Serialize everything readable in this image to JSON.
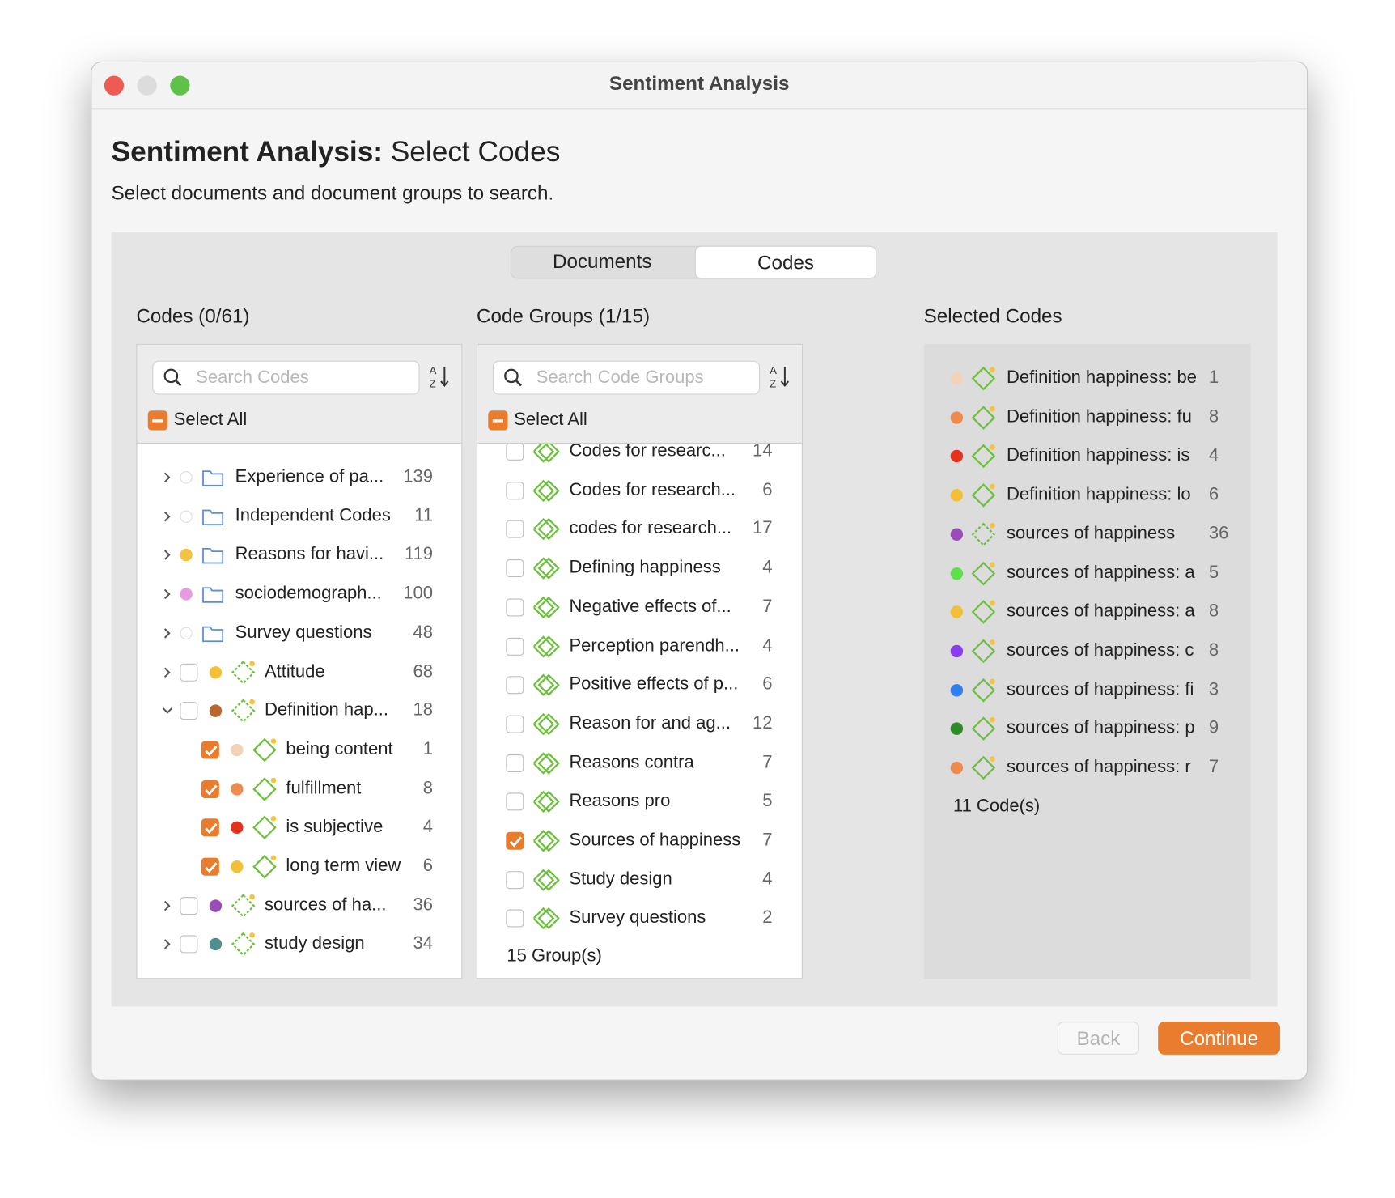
{
  "window": {
    "title": "Sentiment Analysis"
  },
  "header": {
    "title_bold": "Sentiment Analysis:",
    "title_rest": "Select Codes",
    "subtitle": "Select documents and document groups to search."
  },
  "tabs": {
    "items": [
      "Documents",
      "Codes"
    ],
    "active": 1
  },
  "codes": {
    "title": "Codes (0/61)",
    "search_placeholder": "Search Codes",
    "select_all": "Select All",
    "items": [
      {
        "label": "Experience of pa...",
        "count": 139,
        "kind": "folder",
        "color": null,
        "level": 0
      },
      {
        "label": "Independent Codes",
        "count": 11,
        "kind": "folder",
        "color": null,
        "level": 0
      },
      {
        "label": "Reasons for havi...",
        "count": 119,
        "kind": "folder",
        "color": "#f5c242",
        "level": 0
      },
      {
        "label": "sociodemograph...",
        "count": 100,
        "kind": "folder",
        "color": "#e79ae2",
        "level": 0
      },
      {
        "label": "Survey questions",
        "count": 48,
        "kind": "folder",
        "color": null,
        "level": 0
      },
      {
        "label": "Attitude",
        "count": 68,
        "kind": "group-code",
        "color": "#f2c037",
        "level": 0,
        "checked": false
      },
      {
        "label": "Definition hap...",
        "count": 18,
        "kind": "group-code",
        "color": "#b8682d",
        "level": 0,
        "checked": false,
        "expanded": true
      },
      {
        "label": "being content",
        "count": 1,
        "kind": "code",
        "color": "#f3d3b8",
        "level": 1,
        "checked": true
      },
      {
        "label": "fulfillment",
        "count": 8,
        "kind": "code",
        "color": "#ef8a4e",
        "level": 1,
        "checked": true
      },
      {
        "label": "is subjective",
        "count": 4,
        "kind": "code",
        "color": "#e5321d",
        "level": 1,
        "checked": true
      },
      {
        "label": "long term view",
        "count": 6,
        "kind": "code",
        "color": "#f2c037",
        "level": 1,
        "checked": true
      },
      {
        "label": "sources of ha...",
        "count": 36,
        "kind": "group-code",
        "color": "#9a4cb9",
        "level": 0,
        "checked": false
      },
      {
        "label": "study design",
        "count": 34,
        "kind": "group-code",
        "color": "#4f8f8c",
        "level": 0,
        "checked": false
      }
    ]
  },
  "code_groups": {
    "title": "Code Groups (1/15)",
    "search_placeholder": "Search Code Groups",
    "select_all": "Select All",
    "footer": "15 Group(s)",
    "items": [
      {
        "label": "Codes for researc...",
        "count": 14,
        "checked": false
      },
      {
        "label": "Codes for research...",
        "count": 6,
        "checked": false
      },
      {
        "label": "codes for research...",
        "count": 17,
        "checked": false
      },
      {
        "label": "Defining happiness",
        "count": 4,
        "checked": false
      },
      {
        "label": "Negative effects of...",
        "count": 7,
        "checked": false
      },
      {
        "label": "Perception parendh...",
        "count": 4,
        "checked": false
      },
      {
        "label": "Positive effects of p...",
        "count": 6,
        "checked": false
      },
      {
        "label": "Reason for and ag...",
        "count": 12,
        "checked": false
      },
      {
        "label": "Reasons contra",
        "count": 7,
        "checked": false
      },
      {
        "label": "Reasons pro",
        "count": 5,
        "checked": false
      },
      {
        "label": "Sources of happiness",
        "count": 7,
        "checked": true
      },
      {
        "label": "Study design",
        "count": 4,
        "checked": false
      },
      {
        "label": "Survey questions",
        "count": 2,
        "checked": false
      }
    ]
  },
  "selected_codes": {
    "title": "Selected Codes",
    "footer": "11 Code(s)",
    "items": [
      {
        "label": "Definition happiness: be",
        "count": 1,
        "color": "#f3d3b8"
      },
      {
        "label": "Definition happiness: fu",
        "count": 8,
        "color": "#ef8a4e"
      },
      {
        "label": "Definition happiness: is",
        "count": 4,
        "color": "#e5321d"
      },
      {
        "label": "Definition happiness: lo",
        "count": 6,
        "color": "#f2c037"
      },
      {
        "label": "sources of happiness",
        "count": 36,
        "color": "#9a4cb9",
        "dashed": true
      },
      {
        "label": "sources of happiness: a",
        "count": 5,
        "color": "#5ee04a"
      },
      {
        "label": "sources of happiness: a",
        "count": 8,
        "color": "#f2c037"
      },
      {
        "label": "sources of happiness: c",
        "count": 8,
        "color": "#8a3cf0"
      },
      {
        "label": "sources of happiness: fi",
        "count": 3,
        "color": "#2f7ff0"
      },
      {
        "label": "sources of happiness: p",
        "count": 9,
        "color": "#2f8a2a"
      },
      {
        "label": "sources of happiness: r",
        "count": 7,
        "color": "#ef8a4e"
      }
    ]
  },
  "buttons": {
    "back": "Back",
    "continue": "Continue"
  }
}
